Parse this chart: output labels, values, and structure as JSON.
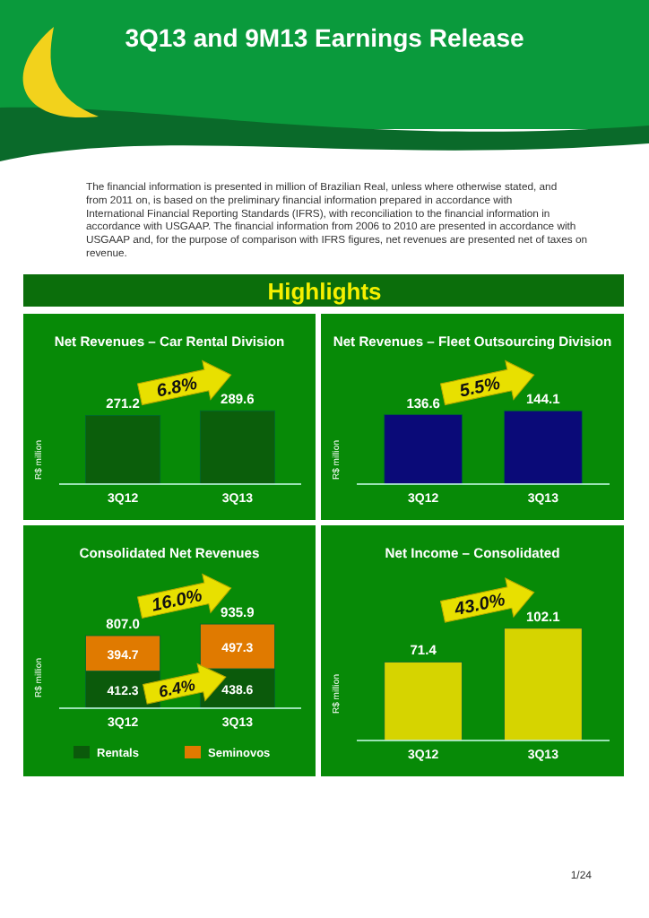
{
  "chart_data": [
    {
      "type": "other",
      "title": "3Q13 and 9M13 Earnings Release",
      "subtitle": "Highlights",
      "annotations": [
        "The financial information is presented in million of Brazilian Real, unless where otherwise stated, and from 2011 on, is based on the preliminary financial information prepared in accordance with International Financial Reporting Standards (IFRS), with reconciliation to the financial information in accordance with USGAAP. The financial information from 2006 to 2010 are presented in accordance with USGAAP and, for the purpose of comparison with IFRS figures, net revenues are presented net of taxes on revenue.",
        "1/24"
      ]
    },
    {
      "type": "bar",
      "title": "Net Revenues – Car Rental Division",
      "ylabel": "R$ million",
      "categories": [
        "3Q12",
        "3Q13"
      ],
      "values": [
        271.2,
        289.6
      ],
      "color": "#0b5e0b",
      "data_labels": true,
      "annotations": [
        "6.8%"
      ]
    },
    {
      "type": "bar",
      "title": "Net Revenues – Fleet Outsourcing Division",
      "ylabel": "R$ million",
      "categories": [
        "3Q12",
        "3Q13"
      ],
      "values": [
        136.6,
        144.1
      ],
      "color": "#0a0a78",
      "data_labels": true,
      "annotations": [
        "5.5%"
      ]
    },
    {
      "type": "bar",
      "title": "Consolidated Net Revenues",
      "ylabel": "R$ million",
      "categories": [
        "3Q12",
        "3Q13"
      ],
      "stacked": true,
      "data_labels": true,
      "legend": "bottom",
      "totals": [
        "807.0",
        "935.9"
      ],
      "annotations": [
        "16.0%",
        "6.4%"
      ],
      "series": [
        {
          "name": "Rentals",
          "color": "#0b5a0b",
          "values": [
            412.3,
            438.6
          ]
        },
        {
          "name": "Seminovos",
          "color": "#e07a00",
          "values": [
            394.7,
            497.3
          ]
        }
      ]
    },
    {
      "type": "bar",
      "title": "Net Income – Consolidated",
      "ylabel": "R$ million",
      "categories": [
        "3Q12",
        "3Q13"
      ],
      "values": [
        71.4,
        102.1
      ],
      "color": "#d6d400",
      "data_labels": true,
      "annotations": [
        "43.0%"
      ]
    }
  ]
}
